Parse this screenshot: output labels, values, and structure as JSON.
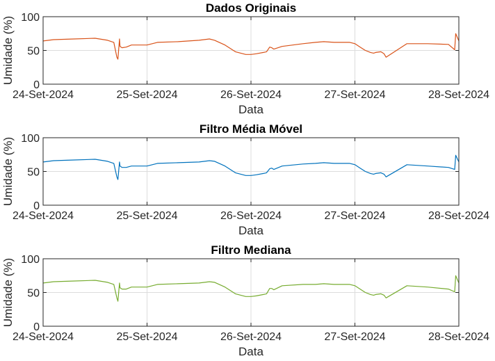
{
  "chart_data": [
    {
      "type": "line",
      "title": "Dados Originais",
      "xlabel": "Data",
      "ylabel": "Umidade (%)",
      "ylim": [
        0,
        100
      ],
      "yticks": [
        "0",
        "50",
        "100"
      ],
      "xticks": [
        "24-Set-2024",
        "25-Set-2024",
        "26-Set-2024",
        "27-Set-2024",
        "28-Set-2024"
      ],
      "xlim": [
        0,
        4
      ],
      "grid": true,
      "color": "#D95319",
      "series": [
        {
          "x": [
            0,
            0.1,
            0.3,
            0.5,
            0.62,
            0.68,
            0.71,
            0.72,
            0.735,
            0.74,
            0.76,
            0.8,
            0.85,
            0.95,
            1.0,
            1.05,
            1.1,
            1.3,
            1.5,
            1.6,
            1.65,
            1.75,
            1.85,
            1.95,
            2.0,
            2.05,
            2.12,
            2.15,
            2.18,
            2.2,
            2.22,
            2.3,
            2.5,
            2.62,
            2.7,
            2.8,
            2.95,
            3.0,
            3.05,
            3.1,
            3.15,
            3.18,
            3.2,
            3.25,
            3.28,
            3.3,
            3.5,
            3.7,
            3.9,
            3.96,
            3.97,
            4.0
          ],
          "y": [
            64,
            66,
            67,
            68,
            65,
            62,
            40,
            37,
            67,
            56,
            54,
            55,
            58,
            58,
            58,
            60,
            62,
            63,
            65,
            67,
            65,
            58,
            48,
            44,
            44,
            45,
            47,
            48,
            55,
            54,
            52,
            56,
            60,
            62,
            63,
            62,
            62,
            60,
            55,
            50,
            47,
            46,
            47,
            48,
            45,
            40,
            60,
            60,
            59,
            51,
            75,
            64
          ]
        }
      ]
    },
    {
      "type": "line",
      "title": "Filtro Média Móvel",
      "xlabel": "Data",
      "ylabel": "Umidade (%)",
      "ylim": [
        0,
        100
      ],
      "yticks": [
        "0",
        "50",
        "100"
      ],
      "xticks": [
        "24-Set-2024",
        "25-Set-2024",
        "26-Set-2024",
        "27-Set-2024",
        "28-Set-2024"
      ],
      "xlim": [
        0,
        4
      ],
      "grid": true,
      "color": "#0072BD",
      "series": [
        {
          "x": [
            0,
            0.1,
            0.3,
            0.5,
            0.62,
            0.68,
            0.71,
            0.72,
            0.735,
            0.74,
            0.76,
            0.8,
            0.85,
            0.95,
            1.0,
            1.05,
            1.1,
            1.3,
            1.5,
            1.6,
            1.65,
            1.75,
            1.85,
            1.95,
            2.0,
            2.05,
            2.12,
            2.15,
            2.18,
            2.2,
            2.22,
            2.3,
            2.5,
            2.62,
            2.7,
            2.8,
            2.95,
            3.0,
            3.05,
            3.1,
            3.15,
            3.18,
            3.2,
            3.25,
            3.28,
            3.3,
            3.5,
            3.7,
            3.9,
            3.96,
            3.97,
            4.0
          ],
          "y": [
            64,
            66,
            67,
            68,
            65,
            62,
            42,
            38,
            64,
            58,
            56,
            56,
            58,
            58,
            58,
            60,
            62,
            63,
            64,
            66,
            65,
            58,
            48,
            44,
            44,
            45,
            47,
            48,
            54,
            55,
            53,
            58,
            61,
            62,
            63,
            62,
            62,
            60,
            55,
            50,
            47,
            46,
            47,
            48,
            46,
            42,
            60,
            58,
            56,
            53,
            74,
            64
          ]
        }
      ]
    },
    {
      "type": "line",
      "title": "Filtro Mediana",
      "xlabel": "Data",
      "ylabel": "Umidade (%)",
      "ylim": [
        0,
        100
      ],
      "yticks": [
        "0",
        "50",
        "100"
      ],
      "xticks": [
        "24-Set-2024",
        "25-Set-2024",
        "26-Set-2024",
        "27-Set-2024",
        "28-Set-2024"
      ],
      "xlim": [
        0,
        4
      ],
      "grid": true,
      "color": "#77AC30",
      "series": [
        {
          "x": [
            0,
            0.1,
            0.3,
            0.5,
            0.62,
            0.68,
            0.71,
            0.72,
            0.735,
            0.74,
            0.76,
            0.8,
            0.85,
            0.95,
            1.0,
            1.05,
            1.1,
            1.3,
            1.5,
            1.6,
            1.65,
            1.75,
            1.85,
            1.95,
            2.0,
            2.05,
            2.12,
            2.15,
            2.18,
            2.2,
            2.22,
            2.3,
            2.5,
            2.62,
            2.7,
            2.8,
            2.95,
            3.0,
            3.05,
            3.1,
            3.15,
            3.18,
            3.2,
            3.25,
            3.28,
            3.3,
            3.5,
            3.7,
            3.9,
            3.96,
            3.97,
            4.0
          ],
          "y": [
            64,
            66,
            67,
            68,
            65,
            62,
            42,
            37,
            64,
            57,
            55,
            55,
            58,
            58,
            58,
            60,
            62,
            63,
            64,
            66,
            65,
            58,
            48,
            44,
            44,
            45,
            47,
            48,
            56,
            56,
            54,
            60,
            62,
            62,
            63,
            62,
            62,
            60,
            55,
            50,
            47,
            46,
            47,
            48,
            46,
            42,
            60,
            58,
            55,
            51,
            75,
            64
          ]
        }
      ]
    }
  ]
}
